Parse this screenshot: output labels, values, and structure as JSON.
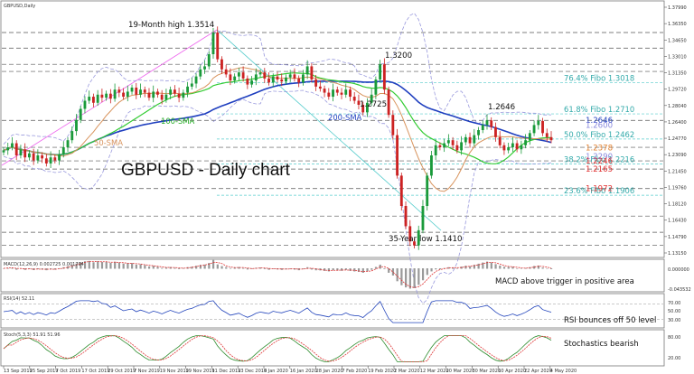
{
  "header": {
    "symbol": "GBPUSD,Daily"
  },
  "chart_data": [
    {
      "type": "candlestick",
      "title": "GBPUSD - Daily chart",
      "x_ticks": [
        "13 Sep 2019",
        "25 Sep 2019",
        "7 Oct 2019",
        "17 Oct 2019",
        "29 Oct 2019",
        "7 Nov 2019",
        "19 Nov 2019",
        "29 Nov 2019",
        "11 Dec 2019",
        "23 Dec 2019",
        "6 Jan 2020",
        "16 Jan 2020",
        "28 Jan 2020",
        "7 Feb 2020",
        "19 Feb 2020",
        "2 Mar 2020",
        "12 Mar 2020",
        "20 Mar 2020",
        "30 Mar 2020",
        "10 Apr 2020",
        "22 Apr 2020",
        "4 May 2020"
      ],
      "ylim": [
        1.13,
        1.38
      ],
      "y_ticks": [
        "1.37990",
        "1.36350",
        "1.34650",
        "1.33010",
        "1.31350",
        "1.29720",
        "1.28040",
        "1.26400",
        "1.24770",
        "1.23090",
        "1.21450",
        "1.19760",
        "1.18120",
        "1.16430",
        "1.14790",
        "1.13150"
      ],
      "close_series": [
        1.235,
        1.238,
        1.242,
        1.23,
        1.236,
        1.228,
        1.232,
        1.225,
        1.23,
        1.227,
        1.222,
        1.228,
        1.225,
        1.231,
        1.238,
        1.245,
        1.254,
        1.265,
        1.276,
        1.284,
        1.288,
        1.282,
        1.29,
        1.287,
        1.291,
        1.286,
        1.295,
        1.292,
        1.288,
        1.293,
        1.297,
        1.29,
        1.295,
        1.292,
        1.287,
        1.293,
        1.29,
        1.285,
        1.29,
        1.295,
        1.291,
        1.287,
        1.292,
        1.298,
        1.301,
        1.308,
        1.315,
        1.318,
        1.33,
        1.3514,
        1.325,
        1.315,
        1.31,
        1.304,
        1.308,
        1.312,
        1.306,
        1.3,
        1.304,
        1.31,
        1.312,
        1.306,
        1.302,
        1.308,
        1.305,
        1.303,
        1.307,
        1.31,
        1.306,
        1.302,
        1.31,
        1.318,
        1.305,
        1.298,
        1.296,
        1.292,
        1.288,
        1.295,
        1.292,
        1.29,
        1.295,
        1.288,
        1.284,
        1.28,
        1.2725,
        1.282,
        1.29,
        1.305,
        1.32,
        1.295,
        1.27,
        1.25,
        1.21,
        1.18,
        1.16,
        1.145,
        1.141,
        1.156,
        1.18,
        1.21,
        1.23,
        1.24,
        1.238,
        1.242,
        1.245,
        1.24,
        1.235,
        1.243,
        1.248,
        1.242,
        1.25,
        1.255,
        1.26,
        1.2646,
        1.258,
        1.248,
        1.24,
        1.235,
        1.238,
        1.242,
        1.236,
        1.24,
        1.245,
        1.252,
        1.26,
        1.264,
        1.252,
        1.248,
        1.245
      ],
      "series": [
        {
          "name": "50-SMA",
          "color": "#d8935c"
        },
        {
          "name": "100-SMA",
          "color": "#33cc33"
        },
        {
          "name": "200-SMA",
          "color": "#1f3fbf"
        }
      ],
      "price_labels": [
        {
          "text": "1.2646",
          "value": 1.2646,
          "color": "#1f3fbf"
        },
        {
          "text": "1.2600",
          "value": 1.26,
          "color": "#8888dd"
        },
        {
          "text": "1.2378",
          "value": 1.2378,
          "color": "#e08030"
        },
        {
          "text": "1.2290",
          "value": 1.229,
          "color": "#8888dd"
        },
        {
          "text": "1.2246",
          "value": 1.2246,
          "color": "#e03030"
        },
        {
          "text": "1.2165",
          "value": 1.2165,
          "color": "#e03030"
        },
        {
          "text": "1.1972",
          "value": 1.1972,
          "color": "#e03030"
        }
      ],
      "fibonacci": [
        {
          "text": "76.4% Fibo 1.3018",
          "value": 1.3018
        },
        {
          "text": "61.8% Fibo 1.2710",
          "value": 1.271
        },
        {
          "text": "50.0% Fibo 1.2462",
          "value": 1.2462
        },
        {
          "text": "38.2% Fibo 1.2216",
          "value": 1.2216
        },
        {
          "text": "23.6% Fibo 1.1906",
          "value": 1.1906
        }
      ],
      "annotations": [
        {
          "text": "19-Month high 1.3514"
        },
        {
          "text": "1.3200"
        },
        {
          "text": "1.2725"
        },
        {
          "text": "1.2646"
        },
        {
          "text": "35-Year low 1.1410"
        },
        {
          "text": "100-SMA"
        },
        {
          "text": "200-SMA"
        },
        {
          "text": "50-SMA"
        }
      ]
    },
    {
      "type": "histogram",
      "title": "MACD(12,26,9) 0.002725 0.001704",
      "annotation": "MACD above trigger in positive area",
      "y_ticks": [
        "0.000000",
        "-0.043532"
      ]
    },
    {
      "type": "line",
      "title": "RSI(14) 52.11",
      "annotation": "RSI bounces off 50 level",
      "y_ticks": [
        "70.00",
        "50.00",
        "30.00"
      ]
    },
    {
      "type": "line",
      "title": "Stoch(5,3,3) 51.91 51.96",
      "annotation": "Stochastics bearish",
      "y_ticks": [
        "80.00",
        "20.00"
      ]
    }
  ]
}
